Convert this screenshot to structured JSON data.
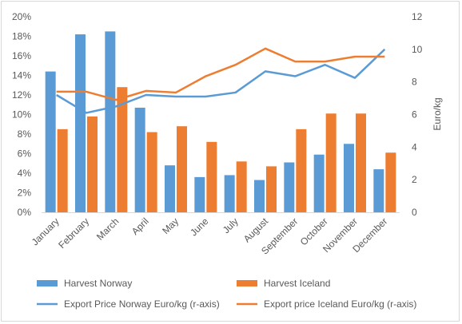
{
  "chart_data": {
    "type": "bar",
    "categories": [
      "January",
      "February",
      "March",
      "April",
      "May",
      "June",
      "July",
      "August",
      "September",
      "October",
      "November",
      "December"
    ],
    "left_axis": {
      "min": 0,
      "max": 0.2,
      "step": 0.02,
      "tick_labels": [
        "0%",
        "2%",
        "4%",
        "6%",
        "8%",
        "10%",
        "12%",
        "14%",
        "16%",
        "18%",
        "20%"
      ]
    },
    "right_axis": {
      "min": 0,
      "max": 12,
      "step": 2,
      "label": "Euro/kg",
      "tick_labels": [
        "0",
        "2",
        "4",
        "6",
        "8",
        "10",
        "12"
      ]
    },
    "grid": false,
    "legend_position": "bottom",
    "series": [
      {
        "name": "Harvest Norway",
        "type": "bar",
        "axis": "left",
        "color": "#5b9bd5",
        "values": [
          0.144,
          0.182,
          0.185,
          0.107,
          0.048,
          0.036,
          0.038,
          0.033,
          0.051,
          0.059,
          0.07,
          0.044
        ]
      },
      {
        "name": "Harvest Iceland",
        "type": "bar",
        "axis": "left",
        "color": "#ed7d31",
        "values": [
          0.085,
          0.098,
          0.128,
          0.082,
          0.088,
          0.072,
          0.052,
          0.047,
          0.085,
          0.101,
          0.101,
          0.061
        ]
      },
      {
        "name": "Export Price Norway Euro/kg (r-axis)",
        "type": "line",
        "axis": "right",
        "color": "#5b9bd5",
        "values": [
          7.2,
          6.1,
          6.5,
          7.2,
          7.1,
          7.1,
          7.35,
          8.65,
          8.35,
          9.05,
          8.25,
          10.0
        ]
      },
      {
        "name": "Export price Iceland Euro/kg (r-axis)",
        "type": "line",
        "axis": "right",
        "color": "#ed7d31",
        "values": [
          7.4,
          7.4,
          6.9,
          7.45,
          7.35,
          8.35,
          9.05,
          10.05,
          9.25,
          9.25,
          9.55,
          9.55
        ]
      }
    ]
  }
}
